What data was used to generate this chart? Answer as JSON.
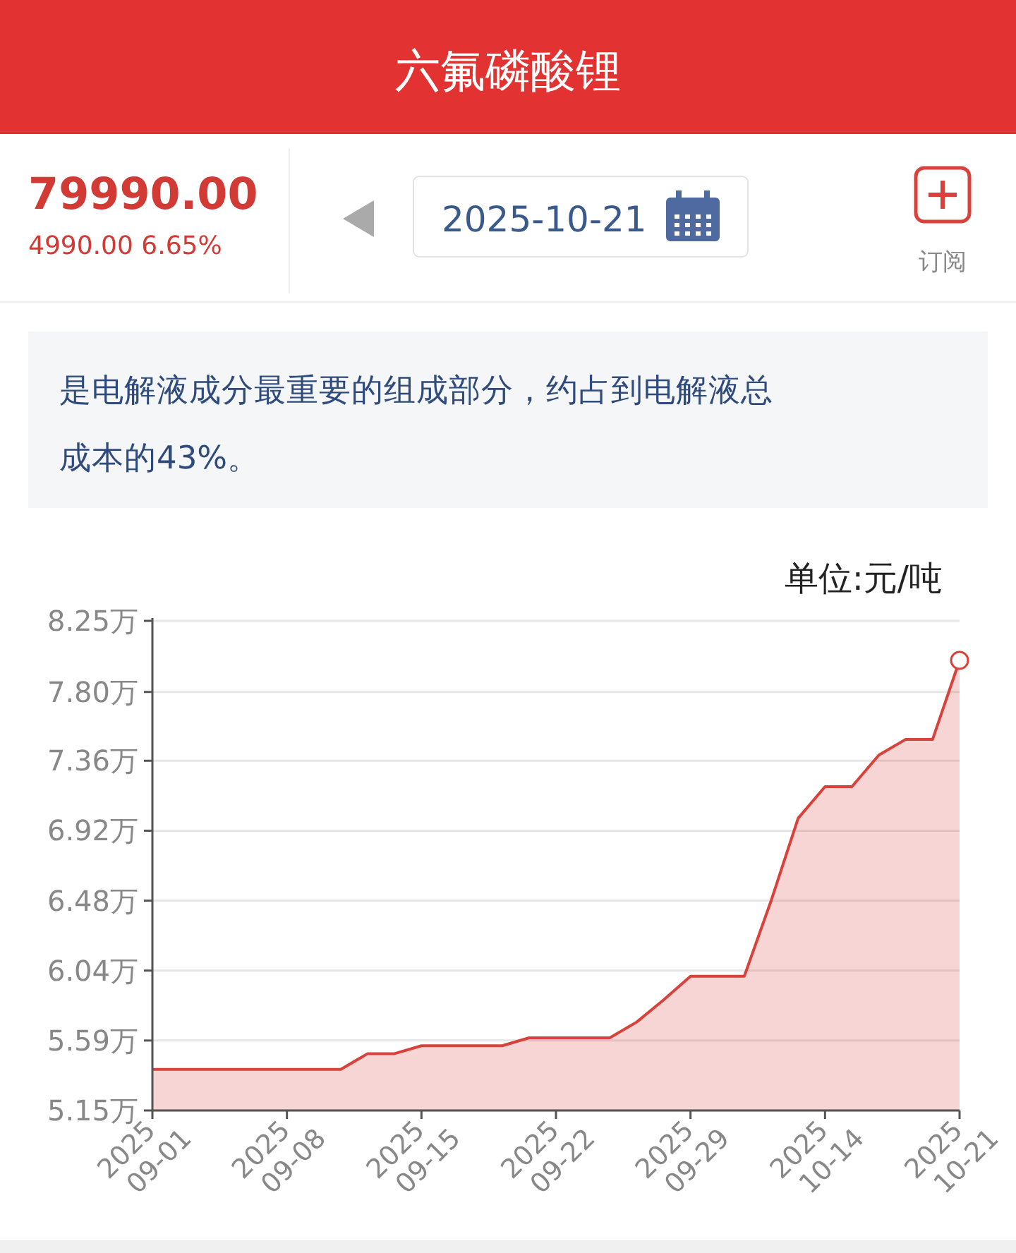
{
  "chart_data": {
    "type": "area",
    "title": "六氟磷酸锂",
    "subtitle": "是电解液成分最重要的组成部分，约占到电解液总成本的43%。",
    "ylabel": "单位:元/吨",
    "annotations": [
      "79990.00",
      "4990.00  6.65%",
      "2025-10-21",
      "订阅"
    ],
    "categories": [
      "2025\n09-01",
      null,
      null,
      null,
      null,
      "2025\n09-08",
      null,
      null,
      null,
      null,
      "2025\n09-15",
      null,
      null,
      null,
      null,
      "2025\n09-22",
      null,
      null,
      null,
      null,
      "2025\n09-29",
      null,
      null,
      null,
      null,
      "2025\n10-14",
      null,
      null,
      null,
      null,
      "2025\n10-21"
    ],
    "series": [
      {
        "color": "#d9413b",
        "values": [
          5.41,
          5.41,
          5.41,
          5.41,
          5.41,
          5.41,
          5.41,
          5.41,
          5.51,
          5.51,
          5.56,
          5.56,
          5.56,
          5.56,
          5.61,
          5.61,
          5.61,
          5.61,
          5.71,
          5.85,
          6.0,
          6.0,
          6.0,
          6.48,
          7.0,
          7.2,
          7.2,
          7.4,
          7.5,
          7.5,
          8.0
        ]
      }
    ],
    "ylim": [
      5.15,
      8.25
    ],
    "yticks": [
      {
        "value": 5.15,
        "label": "5.15万"
      },
      {
        "value": 5.592857,
        "label": "5.59万"
      },
      {
        "value": 6.035714,
        "label": "6.04万"
      },
      {
        "value": 6.478571,
        "label": "6.48万"
      },
      {
        "value": 6.921429,
        "label": "6.92万"
      },
      {
        "value": 7.364286,
        "label": "7.36万"
      },
      {
        "value": 7.8,
        "label": "7.80万"
      },
      {
        "value": 8.25,
        "label": "8.25万"
      }
    ],
    "grid": "y"
  }
}
